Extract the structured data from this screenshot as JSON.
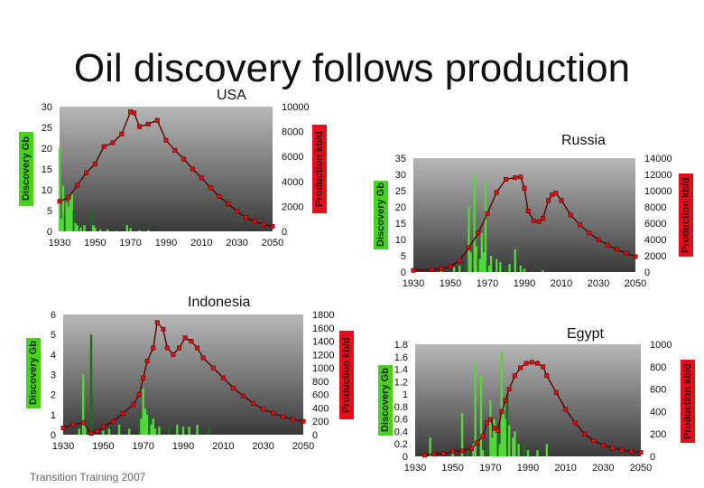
{
  "slide": {
    "title": "Oil discovery follows production",
    "footer": "Transition Training 2007"
  },
  "chart_data": [
    {
      "type": "bar+line",
      "label": "USA",
      "ylabel_left": "Discovery Gb",
      "ylabel_right": "Production kb/d",
      "xlim": [
        1930,
        2050
      ],
      "ylim_left": [
        0,
        30
      ],
      "ylim_right": [
        0,
        10000
      ],
      "xticks": [
        "1930",
        "1950",
        "1970",
        "1990",
        "2010",
        "2030",
        "2050"
      ],
      "yticks_left": [
        "30",
        "25",
        "20",
        "15",
        "10",
        "5",
        "0"
      ],
      "yticks_right": [
        "10000",
        "8000",
        "6000",
        "4000",
        "2000",
        "0"
      ],
      "discovery": [
        [
          1930,
          20
        ],
        [
          1931,
          3
        ],
        [
          1932,
          11
        ],
        [
          1933,
          4
        ],
        [
          1934,
          7
        ],
        [
          1935,
          6
        ],
        [
          1936,
          8
        ],
        [
          1937,
          9
        ],
        [
          1938,
          5
        ],
        [
          1939,
          2
        ],
        [
          1940,
          1.5
        ],
        [
          1942,
          1
        ],
        [
          1944,
          1.5
        ],
        [
          1948,
          5.5
        ],
        [
          1949,
          1.5
        ],
        [
          1950,
          1
        ],
        [
          1953,
          0.5
        ],
        [
          1957,
          0.5
        ],
        [
          1962,
          0.5
        ],
        [
          1968,
          1.5
        ],
        [
          1970,
          0.8
        ],
        [
          1975,
          0.3
        ],
        [
          1980,
          0.3
        ],
        [
          1985,
          0.2
        ]
      ],
      "production": [
        [
          1930,
          2400
        ],
        [
          1935,
          2700
        ],
        [
          1940,
          3700
        ],
        [
          1945,
          4700
        ],
        [
          1950,
          5400
        ],
        [
          1955,
          6800
        ],
        [
          1960,
          7100
        ],
        [
          1965,
          7800
        ],
        [
          1970,
          9600
        ],
        [
          1972,
          9500
        ],
        [
          1975,
          8400
        ],
        [
          1980,
          8600
        ],
        [
          1985,
          8900
        ],
        [
          1990,
          7300
        ],
        [
          1995,
          6500
        ],
        [
          2000,
          5800
        ],
        [
          2005,
          5000
        ],
        [
          2010,
          4300
        ],
        [
          2015,
          3500
        ],
        [
          2020,
          2800
        ],
        [
          2025,
          2200
        ],
        [
          2030,
          1600
        ],
        [
          2035,
          1100
        ],
        [
          2040,
          800
        ],
        [
          2045,
          550
        ],
        [
          2050,
          400
        ]
      ]
    },
    {
      "type": "bar+line",
      "label": "Russia",
      "ylabel_left": "Discovery Gb",
      "ylabel_right": "Production kb/d",
      "xlim": [
        1930,
        2050
      ],
      "ylim_left": [
        0,
        35
      ],
      "ylim_right": [
        0,
        14000
      ],
      "xticks": [
        "1930",
        "1950",
        "1970",
        "1990",
        "2010",
        "2030",
        "2050"
      ],
      "yticks_left": [
        "35",
        "30",
        "25",
        "20",
        "15",
        "10",
        "5",
        "0"
      ],
      "yticks_right": [
        "14000",
        "12000",
        "10000",
        "8000",
        "6000",
        "4000",
        "2000",
        "0"
      ],
      "discovery": [
        [
          1945,
          1
        ],
        [
          1952,
          1.5
        ],
        [
          1955,
          2
        ],
        [
          1958,
          2.5
        ],
        [
          1960,
          20
        ],
        [
          1961,
          6
        ],
        [
          1963,
          30
        ],
        [
          1964,
          8
        ],
        [
          1965,
          5
        ],
        [
          1966,
          4
        ],
        [
          1967,
          12
        ],
        [
          1968,
          6
        ],
        [
          1969,
          28
        ],
        [
          1970,
          3
        ],
        [
          1971,
          2
        ],
        [
          1972,
          5
        ],
        [
          1975,
          4
        ],
        [
          1977,
          3
        ],
        [
          1980,
          2
        ],
        [
          1982,
          2.5
        ],
        [
          1985,
          7
        ],
        [
          1988,
          2
        ],
        [
          1990,
          1
        ],
        [
          1995,
          0.5
        ],
        [
          2000,
          0.5
        ]
      ],
      "production": [
        [
          1930,
          200
        ],
        [
          1940,
          300
        ],
        [
          1945,
          400
        ],
        [
          1950,
          700
        ],
        [
          1955,
          1400
        ],
        [
          1960,
          3000
        ],
        [
          1965,
          4800
        ],
        [
          1970,
          7200
        ],
        [
          1975,
          9800
        ],
        [
          1980,
          11400
        ],
        [
          1985,
          11600
        ],
        [
          1988,
          11700
        ],
        [
          1990,
          10300
        ],
        [
          1992,
          7500
        ],
        [
          1995,
          6300
        ],
        [
          1998,
          6200
        ],
        [
          2000,
          6600
        ],
        [
          2003,
          8800
        ],
        [
          2005,
          9500
        ],
        [
          2007,
          9700
        ],
        [
          2010,
          8800
        ],
        [
          2015,
          7000
        ],
        [
          2020,
          5800
        ],
        [
          2025,
          4800
        ],
        [
          2030,
          4000
        ],
        [
          2035,
          3300
        ],
        [
          2040,
          2800
        ],
        [
          2045,
          2300
        ],
        [
          2050,
          1900
        ]
      ]
    },
    {
      "type": "bar+line",
      "label": "Indonesia",
      "ylabel_left": "Discovery Gb",
      "ylabel_right": "Production kb/d",
      "xlim": [
        1930,
        2050
      ],
      "ylim_left": [
        0,
        6
      ],
      "ylim_right": [
        0,
        1800
      ],
      "xticks": [
        "1930",
        "1950",
        "1970",
        "1990",
        "2010",
        "2030",
        "2050"
      ],
      "yticks_left": [
        "6",
        "5",
        "4",
        "3",
        "2",
        "1",
        "0"
      ],
      "yticks_right": [
        "1800",
        "1600",
        "1400",
        "1200",
        "1000",
        "800",
        "600",
        "400",
        "200",
        "0"
      ],
      "discovery": [
        [
          1938,
          0.3
        ],
        [
          1940,
          3
        ],
        [
          1941,
          0.5
        ],
        [
          1944,
          5
        ],
        [
          1950,
          0.2
        ],
        [
          1953,
          0.3
        ],
        [
          1958,
          0.5
        ],
        [
          1963,
          0.3
        ],
        [
          1968,
          1.2
        ],
        [
          1969,
          0.8
        ],
        [
          1970,
          2.3
        ],
        [
          1971,
          1.3
        ],
        [
          1972,
          1
        ],
        [
          1973,
          1
        ],
        [
          1974,
          0.5
        ],
        [
          1975,
          0.8
        ],
        [
          1976,
          0.3
        ],
        [
          1978,
          0.4
        ],
        [
          1983,
          0.4
        ],
        [
          1987,
          0.5
        ],
        [
          1990,
          0.4
        ],
        [
          1993,
          0.4
        ],
        [
          1997,
          0.5
        ],
        [
          2003,
          0.4
        ]
      ],
      "production": [
        [
          1930,
          100
        ],
        [
          1935,
          150
        ],
        [
          1940,
          180
        ],
        [
          1944,
          20
        ],
        [
          1947,
          50
        ],
        [
          1950,
          120
        ],
        [
          1955,
          200
        ],
        [
          1960,
          320
        ],
        [
          1965,
          450
        ],
        [
          1968,
          600
        ],
        [
          1970,
          850
        ],
        [
          1972,
          1100
        ],
        [
          1975,
          1300
        ],
        [
          1977,
          1680
        ],
        [
          1980,
          1580
        ],
        [
          1982,
          1300
        ],
        [
          1985,
          1200
        ],
        [
          1988,
          1300
        ],
        [
          1991,
          1450
        ],
        [
          1994,
          1400
        ],
        [
          1997,
          1300
        ],
        [
          2000,
          1150
        ],
        [
          2005,
          1000
        ],
        [
          2010,
          850
        ],
        [
          2015,
          700
        ],
        [
          2020,
          580
        ],
        [
          2025,
          470
        ],
        [
          2030,
          380
        ],
        [
          2035,
          320
        ],
        [
          2040,
          270
        ],
        [
          2045,
          230
        ],
        [
          2050,
          200
        ]
      ]
    },
    {
      "type": "bar+line",
      "label": "Egypt",
      "ylabel_left": "Discovery Gb",
      "ylabel_right": "Production kb/d",
      "xlim": [
        1930,
        2050
      ],
      "ylim_left": [
        0,
        1.8
      ],
      "ylim_right": [
        0,
        1000
      ],
      "xticks": [
        "1930",
        "1950",
        "1970",
        "1990",
        "2010",
        "2030",
        "2050"
      ],
      "yticks_left": [
        "1.8",
        "1.6",
        "1.4",
        "1.2",
        "1",
        "0.8",
        "0.6",
        "0.4",
        "0.2",
        "0"
      ],
      "yticks_right": [
        "1000",
        "800",
        "600",
        "400",
        "200",
        "0"
      ],
      "discovery": [
        [
          1938,
          0.3
        ],
        [
          1950,
          0.1
        ],
        [
          1955,
          0.7
        ],
        [
          1958,
          0.1
        ],
        [
          1961,
          0.2
        ],
        [
          1962,
          1.5
        ],
        [
          1965,
          1.3
        ],
        [
          1966,
          0.1
        ],
        [
          1968,
          0.2
        ],
        [
          1970,
          0.9
        ],
        [
          1971,
          0.3
        ],
        [
          1972,
          0.6
        ],
        [
          1973,
          0.4
        ],
        [
          1974,
          0.5
        ],
        [
          1975,
          0.2
        ],
        [
          1976,
          1.7
        ],
        [
          1977,
          0.8
        ],
        [
          1978,
          0.6
        ],
        [
          1979,
          1
        ],
        [
          1980,
          0.5
        ],
        [
          1982,
          0.3
        ],
        [
          1983,
          0.4
        ],
        [
          1985,
          0.2
        ],
        [
          1988,
          0.2
        ],
        [
          1990,
          0.1
        ],
        [
          1995,
          0.1
        ],
        [
          2000,
          0.2
        ]
      ],
      "production": [
        [
          1935,
          10
        ],
        [
          1940,
          20
        ],
        [
          1945,
          25
        ],
        [
          1950,
          45
        ],
        [
          1955,
          50
        ],
        [
          1960,
          70
        ],
        [
          1963,
          120
        ],
        [
          1966,
          180
        ],
        [
          1968,
          300
        ],
        [
          1970,
          330
        ],
        [
          1972,
          250
        ],
        [
          1974,
          230
        ],
        [
          1976,
          400
        ],
        [
          1978,
          500
        ],
        [
          1980,
          600
        ],
        [
          1983,
          720
        ],
        [
          1986,
          790
        ],
        [
          1989,
          830
        ],
        [
          1992,
          840
        ],
        [
          1995,
          830
        ],
        [
          1998,
          800
        ],
        [
          2000,
          720
        ],
        [
          2005,
          570
        ],
        [
          2010,
          420
        ],
        [
          2015,
          300
        ],
        [
          2020,
          200
        ],
        [
          2025,
          140
        ],
        [
          2030,
          100
        ],
        [
          2035,
          75
        ],
        [
          2040,
          55
        ],
        [
          2045,
          45
        ],
        [
          2050,
          35
        ]
      ]
    }
  ]
}
